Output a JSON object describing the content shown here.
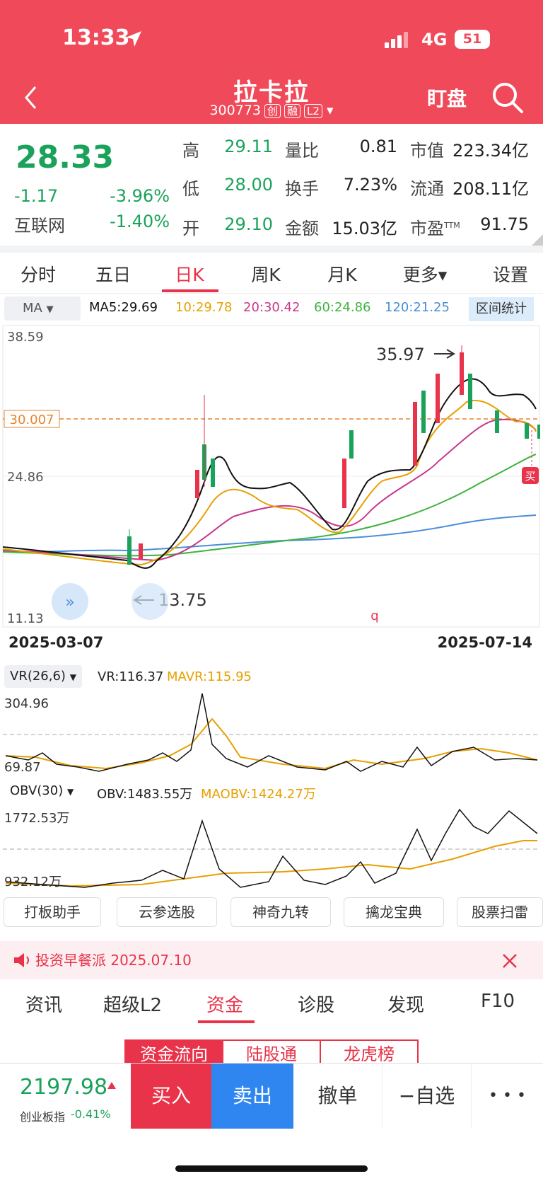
{
  "status": {
    "time": "13:33",
    "network": "4G",
    "battery": "51"
  },
  "header": {
    "title": "拉卡拉",
    "code": "300773",
    "tag1": "创",
    "tag2": "融",
    "tag3": "L2",
    "watch": "盯盘"
  },
  "quote": {
    "price": "28.33",
    "change": "-1.17",
    "change_pct": "-3.96%",
    "sector": "互联网",
    "sector_pct": "-1.40%",
    "high_label": "高",
    "high": "29.11",
    "low_label": "低",
    "low": "28.00",
    "open_label": "开",
    "open": "29.10",
    "vol_ratio_label": "量比",
    "vol_ratio": "0.81",
    "turnover_label": "换手",
    "turnover": "7.23%",
    "amount_label": "金额",
    "amount": "15.03亿",
    "mcap_label": "市值",
    "mcap": "223.34亿",
    "float_label": "流通",
    "float": "208.11亿",
    "pe_label": "市盈",
    "pe_sup": "TTM",
    "pe": "91.75"
  },
  "tabs": [
    "分时",
    "五日",
    "日K",
    "周K",
    "月K",
    "更多▾",
    "设置"
  ],
  "ma": {
    "selector": "MA",
    "ma5": "MA5:29.69",
    "ma10": "10:29.78",
    "ma20": "20:30.42",
    "ma60": "60:24.86",
    "ma120": "120:21.25",
    "range_btn": "区间统计",
    "colors": {
      "ma5": "#111111",
      "ma10": "#e6a000",
      "ma20": "#c8378c",
      "ma60": "#3db33d",
      "ma120": "#4a8ed8"
    }
  },
  "kchart": {
    "y_top": "38.59",
    "y_mid": "24.86",
    "y_bottom": "11.13",
    "current_line": "30.007",
    "high_mark": "35.97",
    "low_mark": "13.75",
    "date_start": "2025-03-07",
    "date_end": "2025-07-14",
    "buy_mark": "买",
    "q_mark": "q"
  },
  "vr": {
    "selector": "VR(26,6)",
    "vr": "VR:116.37",
    "mavr": "MAVR:115.95",
    "y_top": "304.96",
    "y_bottom": "69.87"
  },
  "obv": {
    "selector": "OBV(30)",
    "obv": "OBV:1483.55万",
    "maobv": "MAOBV:1424.27万",
    "y_top": "1772.53万",
    "y_bottom": "932.12万"
  },
  "tools": [
    "打板助手",
    "云参选股",
    "神奇九转",
    "擒龙宝典",
    "股票扫雷"
  ],
  "notice": "投资早餐派 2025.07.10",
  "bottom_tabs": [
    "资讯",
    "超级L2",
    "资金",
    "诊股",
    "发现",
    "F10"
  ],
  "segments": [
    "资金流向",
    "陆股通",
    "龙虎榜"
  ],
  "bottom": {
    "index_value": "2197.98",
    "index_name": "创业板指",
    "index_pct": "-0.41%",
    "buy": "买入",
    "sell": "卖出",
    "cancel": "撤单",
    "watchlist": "−自选",
    "more": "• • •"
  }
}
